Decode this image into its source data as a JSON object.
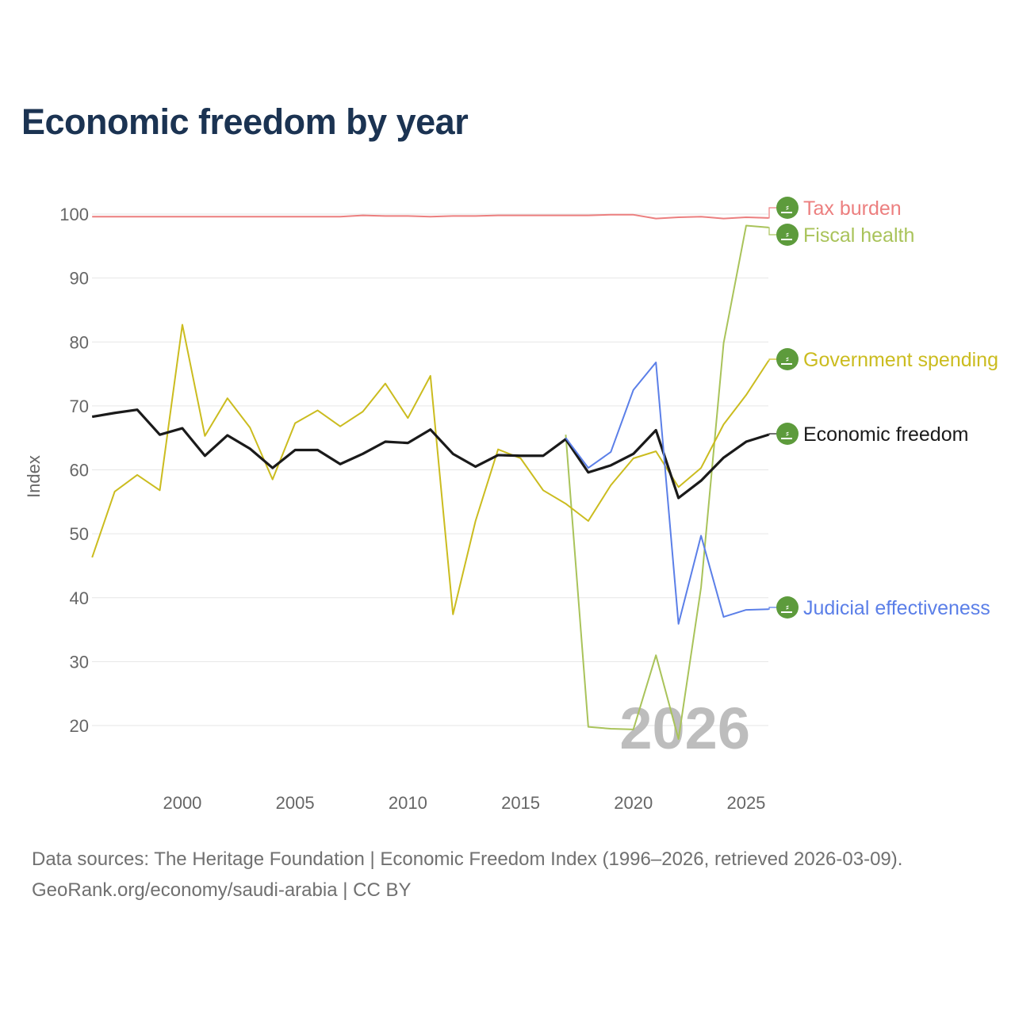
{
  "title": "Economic freedom by year",
  "year_watermark": "2026",
  "footer": {
    "line1": "Data sources: The Heritage Foundation | Economic Freedom Index (1996–2026, retrieved 2026-03-09).",
    "line2": "GeoRank.org/economy/saudi-arabia | CC BY"
  },
  "chart_data": {
    "type": "line",
    "title": "Economic freedom by year",
    "xlabel": "",
    "ylabel": "Index",
    "xlim": [
      1996,
      2026
    ],
    "ylim": [
      11,
      103
    ],
    "xticks": [
      2000,
      2005,
      2010,
      2015,
      2020,
      2025
    ],
    "yticks": [
      20,
      30,
      40,
      50,
      60,
      70,
      80,
      90,
      100
    ],
    "grid": true,
    "legend": "right-end labels with flag icon",
    "series": [
      {
        "name": "Tax burden",
        "color": "#ec7f7f",
        "width": 2,
        "start": 1996,
        "values": [
          99.6,
          99.6,
          99.6,
          99.6,
          99.6,
          99.6,
          99.6,
          99.6,
          99.6,
          99.6,
          99.6,
          99.6,
          99.8,
          99.7,
          99.7,
          99.6,
          99.7,
          99.7,
          99.8,
          99.8,
          99.8,
          99.8,
          99.8,
          99.9,
          99.9,
          99.3,
          99.5,
          99.6,
          99.3,
          99.5,
          99.4
        ]
      },
      {
        "name": "Fiscal health",
        "color": "#a9c35a",
        "width": 2,
        "start": 2017,
        "values": [
          65.5,
          19.8,
          19.5,
          19.4,
          31.0,
          17.9,
          41.6,
          79.8,
          98.2,
          97.9
        ]
      },
      {
        "name": "Government spending",
        "color": "#cbbc1f",
        "width": 2,
        "start": 1996,
        "values": [
          46.3,
          56.6,
          59.2,
          56.8,
          82.7,
          65.3,
          71.2,
          66.6,
          58.5,
          67.3,
          69.3,
          66.8,
          69.1,
          73.5,
          68.1,
          74.7,
          37.4,
          52.0,
          63.2,
          61.8,
          56.8,
          54.7,
          52.0,
          57.6,
          61.8,
          62.9,
          57.3,
          60.3,
          67.1,
          71.7,
          77.1
        ]
      },
      {
        "name": "Economic freedom",
        "color": "#1a1a1a",
        "width": 3.2,
        "start": 1996,
        "values": [
          68.3,
          68.9,
          69.4,
          65.5,
          66.5,
          62.2,
          65.4,
          63.3,
          60.3,
          63.1,
          63.1,
          60.9,
          62.5,
          64.4,
          64.2,
          66.3,
          62.5,
          60.5,
          62.3,
          62.2,
          62.2,
          64.8,
          59.6,
          60.7,
          62.5,
          66.2,
          55.6,
          58.3,
          61.9,
          64.4,
          65.5
        ]
      },
      {
        "name": "Judicial effectiveness",
        "color": "#5b7fe8",
        "width": 2,
        "start": 2017,
        "values": [
          65.0,
          60.3,
          62.8,
          72.5,
          76.8,
          35.9,
          49.7,
          37.0,
          38.1,
          38.2
        ]
      }
    ]
  }
}
